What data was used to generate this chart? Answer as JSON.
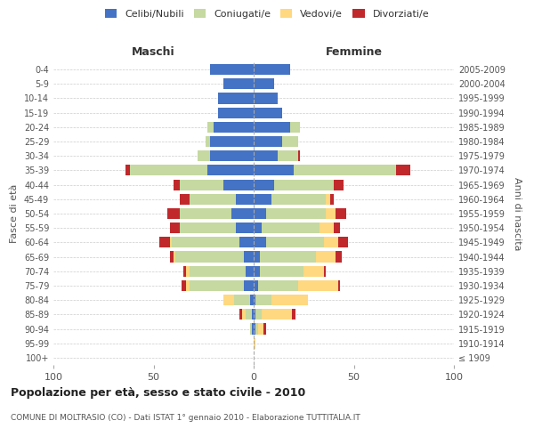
{
  "age_groups": [
    "100+",
    "95-99",
    "90-94",
    "85-89",
    "80-84",
    "75-79",
    "70-74",
    "65-69",
    "60-64",
    "55-59",
    "50-54",
    "45-49",
    "40-44",
    "35-39",
    "30-34",
    "25-29",
    "20-24",
    "15-19",
    "10-14",
    "5-9",
    "0-4"
  ],
  "birth_years": [
    "≤ 1909",
    "1910-1914",
    "1915-1919",
    "1920-1924",
    "1925-1929",
    "1930-1934",
    "1935-1939",
    "1940-1944",
    "1945-1949",
    "1950-1954",
    "1955-1959",
    "1960-1964",
    "1965-1969",
    "1970-1974",
    "1975-1979",
    "1980-1984",
    "1985-1989",
    "1990-1994",
    "1995-1999",
    "2000-2004",
    "2005-2009"
  ],
  "colors": {
    "celibi": "#4472C4",
    "coniugati": "#c5d9a0",
    "vedovi": "#ffd87f",
    "divorziati": "#c0282c"
  },
  "maschi": {
    "celibi": [
      0,
      0,
      1,
      1,
      2,
      5,
      4,
      5,
      7,
      9,
      11,
      9,
      15,
      23,
      22,
      22,
      20,
      18,
      18,
      15,
      22
    ],
    "coniugati": [
      0,
      0,
      1,
      3,
      8,
      27,
      28,
      34,
      34,
      28,
      26,
      23,
      22,
      39,
      6,
      2,
      3,
      0,
      0,
      0,
      0
    ],
    "vedovi": [
      0,
      0,
      0,
      2,
      5,
      2,
      2,
      1,
      1,
      0,
      0,
      0,
      0,
      0,
      0,
      0,
      0,
      0,
      0,
      0,
      0
    ],
    "divorziati": [
      0,
      0,
      0,
      1,
      0,
      2,
      1,
      2,
      5,
      5,
      6,
      5,
      3,
      2,
      0,
      0,
      0,
      0,
      0,
      0,
      0
    ]
  },
  "femmine": {
    "celibi": [
      0,
      0,
      1,
      1,
      1,
      2,
      3,
      3,
      6,
      4,
      6,
      9,
      10,
      20,
      12,
      14,
      18,
      14,
      12,
      10,
      18
    ],
    "coniugati": [
      0,
      0,
      1,
      3,
      8,
      20,
      22,
      28,
      29,
      29,
      30,
      27,
      30,
      51,
      10,
      8,
      5,
      0,
      0,
      0,
      0
    ],
    "vedovi": [
      0,
      1,
      3,
      15,
      18,
      20,
      10,
      10,
      7,
      7,
      5,
      2,
      0,
      0,
      0,
      0,
      0,
      0,
      0,
      0,
      0
    ],
    "divorziati": [
      0,
      0,
      1,
      2,
      0,
      1,
      1,
      3,
      5,
      3,
      5,
      2,
      5,
      7,
      1,
      0,
      0,
      0,
      0,
      0,
      0
    ]
  },
  "title": "Popolazione per età, sesso e stato civile - 2010",
  "subtitle": "COMUNE DI MOLTRASIO (CO) - Dati ISTAT 1° gennaio 2010 - Elaborazione TUTTITALIA.IT",
  "xlabel_left": "Maschi",
  "xlabel_right": "Femmine",
  "ylabel_left": "Fasce di età",
  "ylabel_right": "Anni di nascita",
  "xlim": 100,
  "legend_labels": [
    "Celibi/Nubili",
    "Coniugati/e",
    "Vedovi/e",
    "Divorziati/e"
  ],
  "background_color": "#ffffff",
  "grid_color": "#cccccc"
}
